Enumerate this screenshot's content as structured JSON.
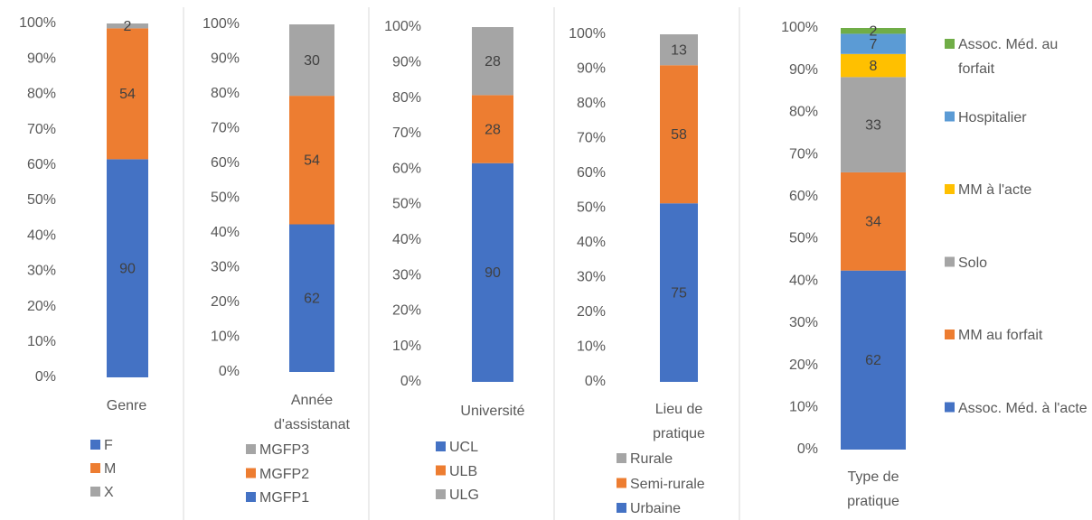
{
  "chart_data": [
    {
      "type": "bar",
      "stacking": "percent",
      "categories": [
        "Genre"
      ],
      "legend_reversed": false,
      "series": [
        {
          "name": "F",
          "color": "#4472c4",
          "values": [
            90
          ]
        },
        {
          "name": "M",
          "color": "#ed7d31",
          "values": [
            54
          ]
        },
        {
          "name": "X",
          "color": "#a5a5a5",
          "values": [
            2
          ]
        }
      ],
      "ylim": [
        0,
        100
      ],
      "yticks": [
        {
          "value": 0,
          "label": "0%"
        },
        {
          "value": 10,
          "label": "10%"
        },
        {
          "value": 20,
          "label": "20%"
        },
        {
          "value": 30,
          "label": "30%"
        },
        {
          "value": 40,
          "label": "40%"
        },
        {
          "value": 50,
          "label": "50%"
        },
        {
          "value": 60,
          "label": "60%"
        },
        {
          "value": 70,
          "label": "70%"
        },
        {
          "value": 80,
          "label": "80%"
        },
        {
          "value": 90,
          "label": "90%"
        },
        {
          "value": 100,
          "label": "100%"
        }
      ]
    },
    {
      "type": "bar",
      "stacking": "percent",
      "categories": [
        "Année d'assistanat"
      ],
      "legend_reversed": true,
      "series": [
        {
          "name": "MGFP1",
          "color": "#4472c4",
          "values": [
            62
          ]
        },
        {
          "name": "MGFP2",
          "color": "#ed7d31",
          "values": [
            54
          ]
        },
        {
          "name": "MGFP3",
          "color": "#a5a5a5",
          "values": [
            30
          ]
        }
      ],
      "ylim": [
        0,
        100
      ],
      "yticks": [
        {
          "value": 0,
          "label": "0%"
        },
        {
          "value": 10,
          "label": "10%"
        },
        {
          "value": 20,
          "label": "20%"
        },
        {
          "value": 30,
          "label": "30%"
        },
        {
          "value": 40,
          "label": "40%"
        },
        {
          "value": 50,
          "label": "50%"
        },
        {
          "value": 60,
          "label": "60%"
        },
        {
          "value": 70,
          "label": "70%"
        },
        {
          "value": 80,
          "label": "80%"
        },
        {
          "value": 90,
          "label": "90%"
        },
        {
          "value": 100,
          "label": "100%"
        }
      ]
    },
    {
      "type": "bar",
      "stacking": "percent",
      "categories": [
        "Université"
      ],
      "legend_reversed": false,
      "series": [
        {
          "name": "UCL",
          "color": "#4472c4",
          "values": [
            90
          ]
        },
        {
          "name": "ULB",
          "color": "#ed7d31",
          "values": [
            28
          ]
        },
        {
          "name": "ULG",
          "color": "#a5a5a5",
          "values": [
            28
          ]
        }
      ],
      "ylim": [
        0,
        100
      ],
      "yticks": [
        {
          "value": 0,
          "label": "0%"
        },
        {
          "value": 10,
          "label": "10%"
        },
        {
          "value": 20,
          "label": "20%"
        },
        {
          "value": 30,
          "label": "30%"
        },
        {
          "value": 40,
          "label": "40%"
        },
        {
          "value": 50,
          "label": "50%"
        },
        {
          "value": 60,
          "label": "60%"
        },
        {
          "value": 70,
          "label": "70%"
        },
        {
          "value": 80,
          "label": "80%"
        },
        {
          "value": 90,
          "label": "90%"
        },
        {
          "value": 100,
          "label": "100%"
        }
      ]
    },
    {
      "type": "bar",
      "stacking": "percent",
      "categories": [
        "Lieu de pratique"
      ],
      "legend_reversed": true,
      "series": [
        {
          "name": "Urbaine",
          "color": "#4472c4",
          "values": [
            75
          ]
        },
        {
          "name": "Semi-rurale",
          "color": "#ed7d31",
          "values": [
            58
          ]
        },
        {
          "name": "Rurale",
          "color": "#a5a5a5",
          "values": [
            13
          ]
        }
      ],
      "ylim": [
        0,
        100
      ],
      "yticks": [
        {
          "value": 0,
          "label": "0%"
        },
        {
          "value": 10,
          "label": "10%"
        },
        {
          "value": 20,
          "label": "20%"
        },
        {
          "value": 30,
          "label": "30%"
        },
        {
          "value": 40,
          "label": "40%"
        },
        {
          "value": 50,
          "label": "50%"
        },
        {
          "value": 60,
          "label": "60%"
        },
        {
          "value": 70,
          "label": "70%"
        },
        {
          "value": 80,
          "label": "80%"
        },
        {
          "value": 90,
          "label": "90%"
        },
        {
          "value": 100,
          "label": "100%"
        }
      ]
    },
    {
      "type": "bar",
      "stacking": "percent",
      "categories": [
        "Type de pratique"
      ],
      "legend_reversed": true,
      "series": [
        {
          "name": "Assoc. Méd. à l'acte",
          "color": "#4472c4",
          "values": [
            62
          ]
        },
        {
          "name": "MM au forfait",
          "color": "#ed7d31",
          "values": [
            34
          ]
        },
        {
          "name": "Solo",
          "color": "#a5a5a5",
          "values": [
            33
          ]
        },
        {
          "name": "MM à l'acte",
          "color": "#ffc000",
          "values": [
            8
          ]
        },
        {
          "name": "Hospitalier",
          "color": "#5b9bd5",
          "values": [
            7
          ]
        },
        {
          "name": "Assoc. Méd. au forfait",
          "color": "#70ad47",
          "values": [
            2
          ]
        }
      ],
      "ylim": [
        0,
        100
      ],
      "yticks": [
        {
          "value": 0,
          "label": "0%"
        },
        {
          "value": 10,
          "label": "10%"
        },
        {
          "value": 20,
          "label": "20%"
        },
        {
          "value": 30,
          "label": "30%"
        },
        {
          "value": 40,
          "label": "40%"
        },
        {
          "value": 50,
          "label": "50%"
        },
        {
          "value": 60,
          "label": "60%"
        },
        {
          "value": 70,
          "label": "70%"
        },
        {
          "value": 80,
          "label": "80%"
        },
        {
          "value": 90,
          "label": "90%"
        },
        {
          "value": 100,
          "label": "100%"
        }
      ]
    }
  ]
}
